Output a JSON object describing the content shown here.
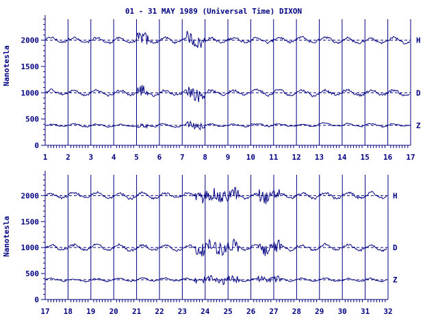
{
  "colors": {
    "ink": "#000080",
    "background": "#ffffff"
  },
  "chart_data": {
    "type": "line",
    "title": "01 - 31 MAY 1989 (Universal Time) DIXON",
    "panels": [
      {
        "ylabel": "Nanotesla",
        "ylim": [
          0,
          2400
        ],
        "yticks": [
          0,
          500,
          1000,
          1500,
          2000
        ],
        "xlim": [
          1,
          17
        ],
        "xticks": [
          1,
          2,
          3,
          4,
          5,
          6,
          7,
          8,
          9,
          10,
          11,
          12,
          13,
          14,
          15,
          16,
          17
        ],
        "grid_vertical": true,
        "series": [
          {
            "name": "H",
            "baseline": 2000
          },
          {
            "name": "D",
            "baseline": 1000
          },
          {
            "name": "Z",
            "baseline": 380
          }
        ]
      },
      {
        "ylabel": "Nanotesla",
        "ylim": [
          0,
          2400
        ],
        "yticks": [
          0,
          500,
          1000,
          1500,
          2000
        ],
        "xlim": [
          17,
          32
        ],
        "xticks": [
          17,
          18,
          19,
          20,
          21,
          22,
          23,
          24,
          25,
          26,
          27,
          28,
          29,
          30,
          31,
          32
        ],
        "grid_vertical": true,
        "series": [
          {
            "name": "H",
            "baseline": 2000
          },
          {
            "name": "D",
            "baseline": 1000
          },
          {
            "name": "Z",
            "baseline": 380
          }
        ]
      }
    ]
  }
}
